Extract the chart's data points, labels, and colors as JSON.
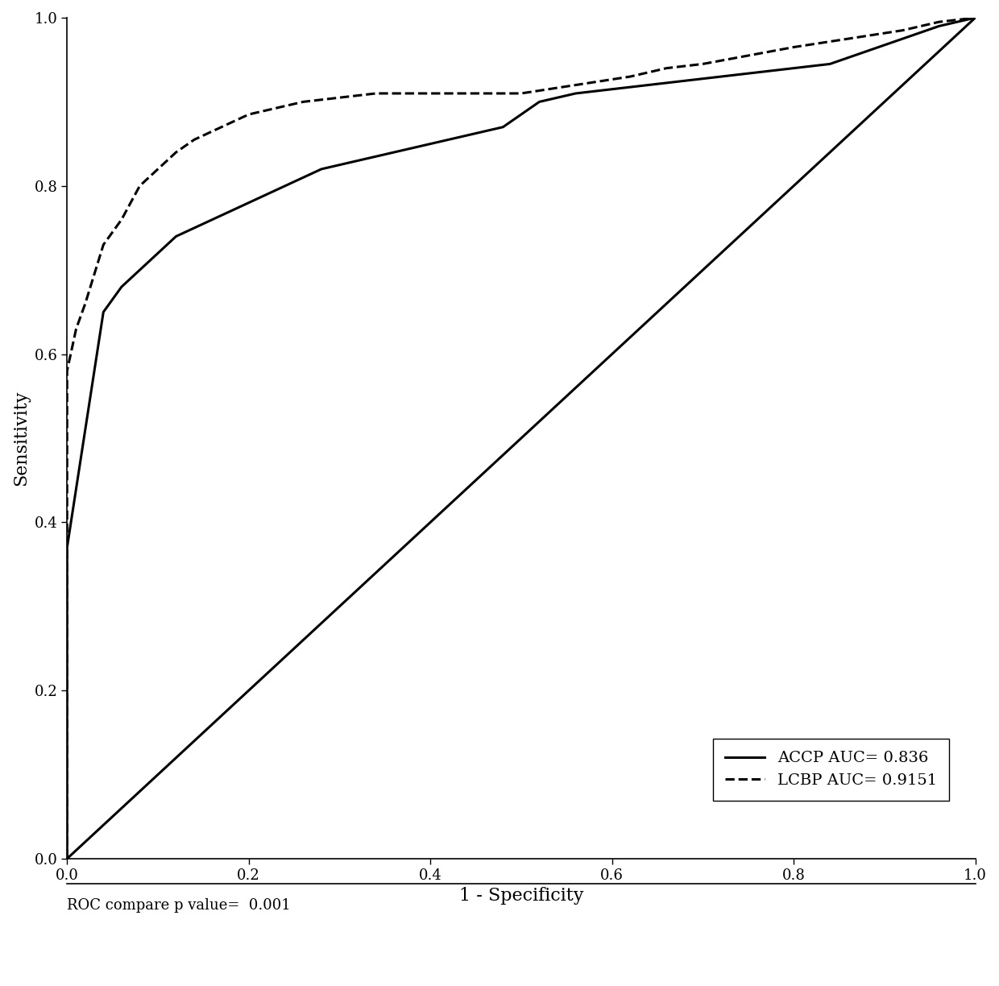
{
  "title": "",
  "xlabel": "1 - Specificity",
  "ylabel": "Sensitivity",
  "xlim": [
    0.0,
    1.0
  ],
  "ylim": [
    0.0,
    1.0
  ],
  "xticks": [
    0.0,
    0.2,
    0.4,
    0.6,
    0.8,
    1.0
  ],
  "yticks": [
    0.0,
    0.2,
    0.4,
    0.6,
    0.8,
    1.0
  ],
  "background_color": "#ffffff",
  "footnote": "ROC compare p value=  0.001",
  "legend_labels": [
    "ACCP AUC= 0.836",
    "LCBP AUC= 0.9151"
  ],
  "accp_x": [
    0.0,
    0.0,
    0.0,
    0.02,
    0.02,
    0.04,
    0.04,
    0.06,
    0.06,
    0.08,
    0.08,
    0.1,
    0.1,
    0.12,
    0.12,
    0.14,
    0.14,
    0.16,
    0.16,
    0.18,
    0.18,
    0.2,
    0.2,
    0.22,
    0.22,
    0.24,
    0.24,
    0.26,
    0.26,
    0.28,
    0.28,
    0.3,
    0.3,
    0.32,
    0.32,
    0.34,
    0.34,
    0.36,
    0.36,
    0.38,
    0.38,
    0.4,
    0.4,
    0.44,
    0.44,
    0.48,
    0.48,
    0.52,
    0.52,
    0.56,
    0.56,
    0.6,
    0.6,
    0.64,
    0.64,
    0.68,
    0.68,
    0.72,
    0.72,
    0.76,
    0.76,
    0.8,
    0.8,
    0.84,
    0.84,
    0.88,
    0.88,
    0.92,
    0.92,
    0.96,
    0.96,
    1.0
  ],
  "accp_y": [
    0.0,
    0.37,
    0.37,
    0.51,
    0.51,
    0.65,
    0.65,
    0.68,
    0.68,
    0.7,
    0.7,
    0.72,
    0.72,
    0.74,
    0.74,
    0.75,
    0.75,
    0.76,
    0.76,
    0.77,
    0.77,
    0.78,
    0.78,
    0.79,
    0.79,
    0.8,
    0.8,
    0.81,
    0.81,
    0.82,
    0.82,
    0.825,
    0.825,
    0.83,
    0.83,
    0.835,
    0.835,
    0.84,
    0.84,
    0.845,
    0.845,
    0.85,
    0.85,
    0.86,
    0.86,
    0.87,
    0.87,
    0.9,
    0.9,
    0.91,
    0.91,
    0.915,
    0.915,
    0.92,
    0.92,
    0.925,
    0.925,
    0.93,
    0.93,
    0.935,
    0.935,
    0.94,
    0.94,
    0.945,
    0.945,
    0.96,
    0.96,
    0.975,
    0.975,
    0.99,
    0.99,
    1.0
  ],
  "lcbp_x": [
    0.0,
    0.0,
    0.0,
    0.01,
    0.01,
    0.02,
    0.02,
    0.04,
    0.04,
    0.06,
    0.06,
    0.08,
    0.08,
    0.1,
    0.1,
    0.12,
    0.12,
    0.14,
    0.14,
    0.16,
    0.16,
    0.18,
    0.18,
    0.2,
    0.2,
    0.22,
    0.22,
    0.24,
    0.24,
    0.26,
    0.26,
    0.3,
    0.3,
    0.34,
    0.34,
    0.38,
    0.38,
    0.42,
    0.42,
    0.46,
    0.46,
    0.5,
    0.5,
    0.56,
    0.56,
    0.62,
    0.62,
    0.66,
    0.66,
    0.7,
    0.7,
    0.75,
    0.75,
    0.8,
    0.8,
    0.86,
    0.86,
    0.92,
    0.92,
    0.96,
    0.96,
    1.0
  ],
  "lcbp_y": [
    0.0,
    0.58,
    0.58,
    0.63,
    0.63,
    0.66,
    0.66,
    0.73,
    0.73,
    0.76,
    0.76,
    0.8,
    0.8,
    0.82,
    0.82,
    0.84,
    0.84,
    0.855,
    0.855,
    0.865,
    0.865,
    0.875,
    0.875,
    0.885,
    0.885,
    0.89,
    0.89,
    0.895,
    0.895,
    0.9,
    0.9,
    0.905,
    0.905,
    0.91,
    0.91,
    0.91,
    0.91,
    0.91,
    0.91,
    0.91,
    0.91,
    0.91,
    0.91,
    0.92,
    0.92,
    0.93,
    0.93,
    0.94,
    0.94,
    0.945,
    0.945,
    0.955,
    0.955,
    0.965,
    0.965,
    0.975,
    0.975,
    0.985,
    0.985,
    0.995,
    0.995,
    1.0
  ],
  "line_color": "#000000",
  "line_width": 2.2,
  "font_family": "serif"
}
